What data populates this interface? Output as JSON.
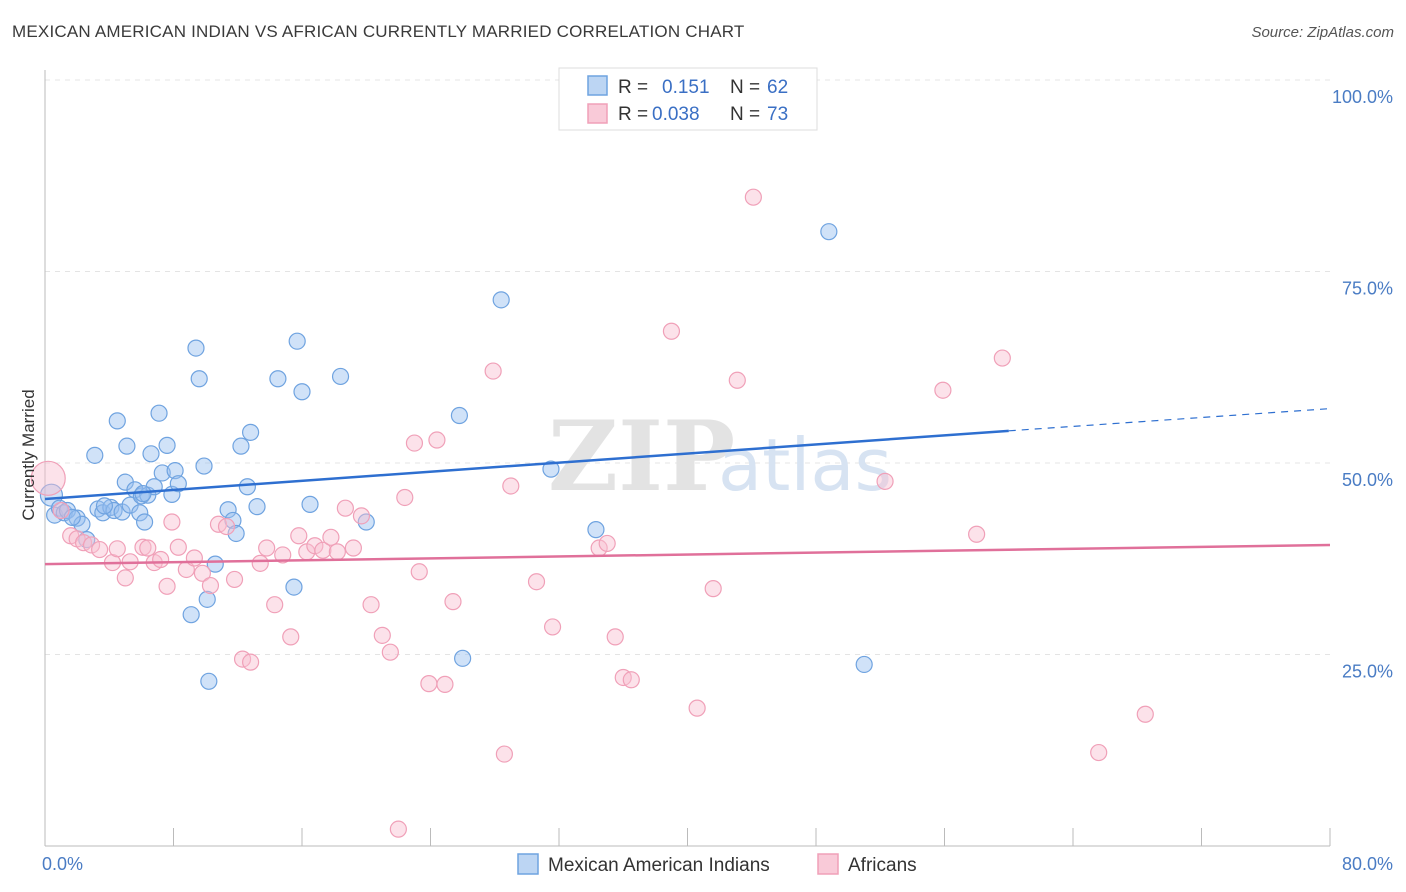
{
  "title": "MEXICAN AMERICAN INDIAN VS AFRICAN CURRENTLY MARRIED CORRELATION CHART",
  "source": "Source: ZipAtlas.com",
  "watermark": {
    "zip": "ZIP",
    "atlas": "atlas"
  },
  "colors": {
    "blue": "#6fa3e0",
    "blue_line": "#2e6fd0",
    "pink": "#f0a0b8",
    "pink_line": "#e0709a",
    "grid": "#e4e4e4"
  },
  "legend": {
    "rows": [
      {
        "r_label": "R =",
        "r_value": "0.151",
        "n_label": "N =",
        "n_value": "62"
      },
      {
        "r_label": "R =",
        "r_value": "0.038",
        "n_label": "N =",
        "n_value": "73"
      }
    ]
  },
  "chart_data": {
    "type": "scatter",
    "xlabel": "",
    "ylabel": "Currently Married",
    "xlim": [
      0,
      80
    ],
    "ylim": [
      0,
      100
    ],
    "x_tick_labels": [
      "0.0%",
      "80.0%"
    ],
    "y_tick_labels": [
      "100.0%",
      "75.0%",
      "50.0%",
      "25.0%"
    ],
    "y_tick_values": [
      100,
      75,
      50,
      25
    ],
    "grid": true,
    "legend_position": "top-center",
    "series": [
      {
        "name": "Mexican American Indians",
        "color": "#6fa3e0",
        "trend": {
          "x0": 0,
          "y0": 45.3,
          "x1": 60,
          "y1": 54.2,
          "dash_to_x": 80,
          "dash_to_y": 57.1
        },
        "points": [
          [
            0.4,
            45.8
          ],
          [
            0.6,
            43.2
          ],
          [
            0.9,
            44.1
          ],
          [
            1.2,
            43.5
          ],
          [
            1.4,
            43.8
          ],
          [
            2.0,
            42.8
          ],
          [
            2.3,
            42.0
          ],
          [
            2.6,
            40.0
          ],
          [
            3.1,
            51.0
          ],
          [
            3.3,
            44.0
          ],
          [
            3.6,
            43.5
          ],
          [
            4.1,
            44.2
          ],
          [
            4.3,
            43.8
          ],
          [
            4.5,
            55.5
          ],
          [
            4.8,
            43.6
          ],
          [
            5.0,
            47.5
          ],
          [
            5.1,
            52.2
          ],
          [
            5.3,
            44.5
          ],
          [
            5.6,
            46.5
          ],
          [
            5.9,
            43.5
          ],
          [
            6.0,
            45.7
          ],
          [
            6.2,
            42.3
          ],
          [
            6.4,
            45.8
          ],
          [
            6.6,
            51.2
          ],
          [
            6.8,
            46.9
          ],
          [
            7.1,
            56.5
          ],
          [
            7.3,
            48.7
          ],
          [
            7.6,
            52.3
          ],
          [
            7.9,
            45.9
          ],
          [
            8.1,
            49.0
          ],
          [
            8.3,
            47.3
          ],
          [
            9.4,
            65.0
          ],
          [
            9.6,
            61.0
          ],
          [
            9.9,
            49.6
          ],
          [
            10.1,
            32.2
          ],
          [
            10.2,
            21.5
          ],
          [
            10.6,
            36.8
          ],
          [
            11.4,
            43.9
          ],
          [
            11.7,
            42.5
          ],
          [
            11.9,
            40.8
          ],
          [
            12.2,
            52.2
          ],
          [
            12.6,
            46.9
          ],
          [
            12.8,
            54.0
          ],
          [
            13.2,
            44.3
          ],
          [
            14.5,
            61.0
          ],
          [
            15.5,
            33.8
          ],
          [
            15.7,
            65.9
          ],
          [
            16.0,
            59.3
          ],
          [
            16.5,
            44.6
          ],
          [
            18.4,
            61.3
          ],
          [
            20.0,
            42.3
          ],
          [
            25.8,
            56.2
          ],
          [
            26.0,
            24.5
          ],
          [
            28.4,
            71.3
          ],
          [
            31.5,
            49.2
          ],
          [
            34.3,
            41.3
          ],
          [
            48.8,
            80.2
          ],
          [
            51.0,
            23.7
          ],
          [
            9.1,
            30.2
          ],
          [
            3.7,
            44.4
          ],
          [
            1.7,
            42.9
          ],
          [
            6.1,
            46.0
          ]
        ]
      },
      {
        "name": "Africans",
        "color": "#f0a0b8",
        "trend": {
          "x0": 0,
          "y0": 36.8,
          "x1": 80,
          "y1": 39.3
        },
        "points": [
          [
            0.2,
            48.0
          ],
          [
            1.0,
            43.8
          ],
          [
            1.6,
            40.5
          ],
          [
            2.0,
            40.1
          ],
          [
            2.4,
            39.6
          ],
          [
            2.9,
            39.3
          ],
          [
            3.4,
            38.7
          ],
          [
            4.2,
            37.0
          ],
          [
            4.5,
            38.8
          ],
          [
            5.0,
            35.0
          ],
          [
            5.3,
            37.1
          ],
          [
            6.1,
            39.0
          ],
          [
            6.4,
            38.9
          ],
          [
            6.8,
            37.0
          ],
          [
            7.2,
            37.4
          ],
          [
            7.6,
            33.9
          ],
          [
            7.9,
            42.3
          ],
          [
            8.3,
            39.0
          ],
          [
            8.8,
            36.1
          ],
          [
            9.3,
            37.6
          ],
          [
            9.8,
            35.6
          ],
          [
            10.3,
            34.0
          ],
          [
            10.8,
            42.0
          ],
          [
            11.3,
            41.7
          ],
          [
            11.8,
            34.8
          ],
          [
            12.3,
            24.4
          ],
          [
            12.8,
            24.0
          ],
          [
            13.4,
            36.9
          ],
          [
            13.8,
            38.9
          ],
          [
            14.3,
            31.5
          ],
          [
            14.8,
            38.0
          ],
          [
            15.3,
            27.3
          ],
          [
            15.8,
            40.5
          ],
          [
            16.3,
            38.4
          ],
          [
            16.8,
            39.2
          ],
          [
            17.3,
            38.6
          ],
          [
            17.8,
            40.3
          ],
          [
            18.2,
            38.4
          ],
          [
            18.7,
            44.1
          ],
          [
            19.2,
            38.9
          ],
          [
            19.7,
            43.1
          ],
          [
            20.3,
            31.5
          ],
          [
            21.0,
            27.5
          ],
          [
            21.5,
            25.3
          ],
          [
            22.0,
            2.2
          ],
          [
            22.4,
            45.5
          ],
          [
            23.0,
            52.6
          ],
          [
            23.3,
            35.8
          ],
          [
            23.9,
            21.2
          ],
          [
            24.4,
            53.0
          ],
          [
            24.9,
            21.1
          ],
          [
            25.4,
            31.9
          ],
          [
            27.9,
            62.0
          ],
          [
            28.6,
            12.0
          ],
          [
            29.0,
            47.0
          ],
          [
            30.6,
            34.5
          ],
          [
            31.6,
            28.6
          ],
          [
            34.5,
            38.9
          ],
          [
            35.0,
            39.5
          ],
          [
            35.5,
            27.3
          ],
          [
            36.0,
            22.0
          ],
          [
            36.5,
            21.7
          ],
          [
            39.0,
            67.2
          ],
          [
            40.6,
            18.0
          ],
          [
            41.6,
            33.6
          ],
          [
            43.1,
            60.8
          ],
          [
            44.1,
            84.7
          ],
          [
            52.3,
            47.6
          ],
          [
            55.9,
            59.5
          ],
          [
            58.0,
            40.7
          ],
          [
            59.6,
            63.7
          ],
          [
            65.6,
            12.2
          ],
          [
            68.5,
            17.2
          ]
        ]
      }
    ]
  }
}
